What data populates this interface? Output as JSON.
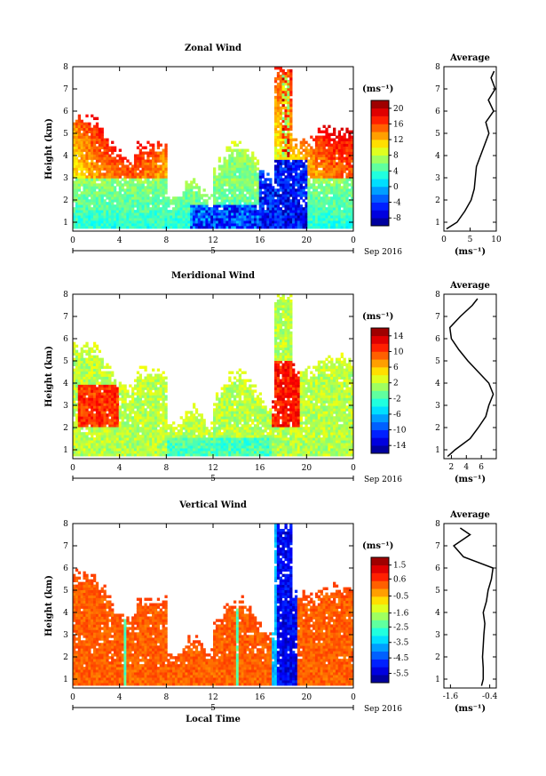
{
  "figure": {
    "x_axis_title": "Local Time",
    "day_label": "5",
    "month_label": "Sep 2016",
    "unit_label": "(ms⁻¹)",
    "y_axis_title": "Height (km)",
    "average_title": "Average"
  },
  "chart_data": [
    {
      "type": "heatmap",
      "title": "Zonal Wind",
      "xlabel": "",
      "ylabel": "Height (km)",
      "x_ticks": [
        "0",
        "4",
        "8",
        "12",
        "16",
        "20",
        "0"
      ],
      "xlim": [
        0,
        24
      ],
      "ylim": [
        0.6,
        8.0
      ],
      "y_ticks": [
        "1",
        "2",
        "3",
        "4",
        "5",
        "6",
        "7",
        "8"
      ],
      "colorbar": {
        "label": "(ms⁻¹)",
        "min": -10,
        "max": 22,
        "ticks": [
          "20",
          "16",
          "12",
          "8",
          "4",
          "0",
          "-4",
          "-8"
        ]
      },
      "average_profile": {
        "title": "Average",
        "xlabel": "(ms⁻¹)",
        "xlim": [
          0,
          10
        ],
        "x_ticks": [
          "0",
          "5",
          "10"
        ],
        "heights": [
          0.7,
          1.0,
          1.5,
          2.0,
          2.5,
          3.0,
          3.5,
          4.0,
          4.5,
          5.0,
          5.5,
          6.0,
          6.5,
          7.0,
          7.5,
          7.8
        ],
        "values": [
          0.5,
          2.5,
          4.0,
          5.2,
          5.8,
          6.0,
          6.2,
          7.0,
          7.8,
          8.6,
          8.0,
          9.5,
          8.5,
          9.8,
          9.0,
          9.6
        ]
      }
    },
    {
      "type": "heatmap",
      "title": "Meridional Wind",
      "xlabel": "",
      "ylabel": "Height (km)",
      "x_ticks": [
        "0",
        "4",
        "8",
        "12",
        "16",
        "20",
        "0"
      ],
      "xlim": [
        0,
        24
      ],
      "ylim": [
        0.6,
        8.0
      ],
      "y_ticks": [
        "1",
        "2",
        "3",
        "4",
        "5",
        "6",
        "7",
        "8"
      ],
      "colorbar": {
        "label": "(ms⁻¹)",
        "min": -16,
        "max": 16,
        "ticks": [
          "14",
          "10",
          "6",
          "2",
          "-2",
          "-6",
          "-10",
          "-14"
        ]
      },
      "average_profile": {
        "title": "Average",
        "xlabel": "(ms⁻¹)",
        "xlim": [
          1,
          8
        ],
        "x_ticks": [
          "2",
          "4",
          "6"
        ],
        "heights": [
          0.7,
          1.0,
          1.5,
          2.0,
          2.5,
          3.0,
          3.5,
          4.0,
          4.5,
          5.0,
          5.5,
          6.0,
          6.5,
          7.0,
          7.5,
          7.8
        ],
        "values": [
          1.5,
          2.5,
          4.5,
          5.6,
          6.6,
          7.0,
          7.6,
          7.0,
          5.6,
          4.2,
          3.0,
          2.0,
          1.8,
          3.2,
          4.8,
          5.5
        ]
      }
    },
    {
      "type": "heatmap",
      "title": "Vertical Wind",
      "xlabel": "Local Time",
      "ylabel": "Height (km)",
      "x_ticks": [
        "0",
        "4",
        "8",
        "12",
        "16",
        "20",
        "0"
      ],
      "xlim": [
        0,
        24
      ],
      "ylim": [
        0.6,
        8.0
      ],
      "y_ticks": [
        "1",
        "2",
        "3",
        "4",
        "5",
        "6",
        "7",
        "8"
      ],
      "colorbar": {
        "label": "(ms⁻¹)",
        "min": -6.1,
        "max": 2.0,
        "ticks": [
          "1.5",
          "0.6",
          "-0.5",
          "-1.6",
          "-2.5",
          "-3.5",
          "-4.5",
          "-5.5"
        ]
      },
      "average_profile": {
        "title": "Average",
        "xlabel": "(ms⁻¹)",
        "xlim": [
          -1.8,
          -0.2
        ],
        "x_ticks": [
          "-1.6",
          "-0.4"
        ],
        "heights": [
          0.7,
          1.0,
          1.5,
          2.0,
          2.5,
          3.0,
          3.5,
          4.0,
          4.5,
          5.0,
          5.5,
          6.0,
          6.5,
          7.0,
          7.5,
          7.8
        ],
        "values": [
          -0.65,
          -0.6,
          -0.6,
          -0.62,
          -0.6,
          -0.58,
          -0.55,
          -0.6,
          -0.5,
          -0.45,
          -0.35,
          -0.3,
          -1.2,
          -1.5,
          -1.0,
          -1.3
        ]
      }
    }
  ]
}
